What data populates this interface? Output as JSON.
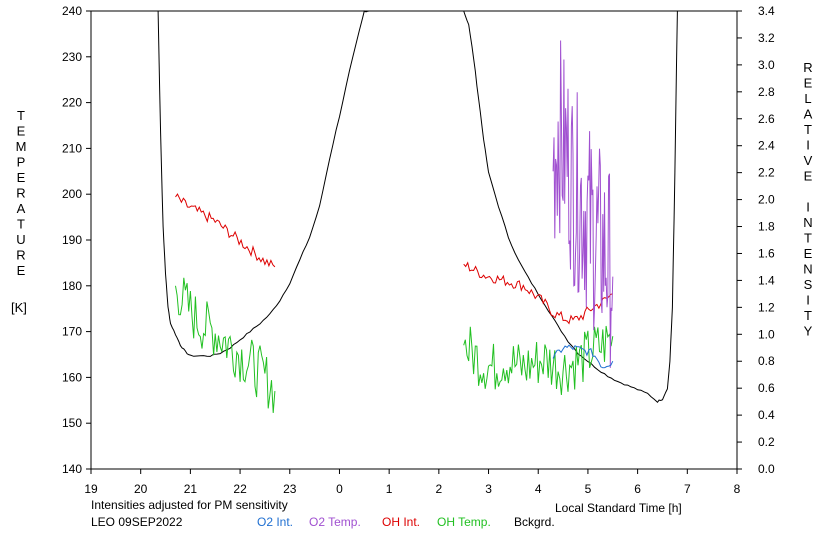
{
  "chart_data": {
    "type": "line",
    "title": "",
    "xlabel": "Local Standard Time [h]",
    "ylabel_left": "TEMPERATURE [K]",
    "ylabel_right": "RELATIVE INTENSITY",
    "ylabel_left_letters": [
      "T",
      "E",
      "M",
      "P",
      "E",
      "R",
      "A",
      "T",
      "U",
      "R",
      "E"
    ],
    "ylabel_left_unit": "[K]",
    "ylabel_right_letters": [
      "R",
      "E",
      "L",
      "A",
      "T",
      "I",
      "V",
      "E",
      "",
      "I",
      "N",
      "T",
      "E",
      "N",
      "S",
      "I",
      "T",
      "Y"
    ],
    "x_ticks": [
      "19",
      "20",
      "21",
      "22",
      "23",
      "0",
      "1",
      "2",
      "3",
      "4",
      "5",
      "6",
      "7",
      "8"
    ],
    "x_range": [
      19,
      32
    ],
    "y_left_range": [
      140,
      240
    ],
    "y_left_ticks": [
      "140",
      "150",
      "160",
      "170",
      "180",
      "190",
      "200",
      "210",
      "220",
      "230",
      "240"
    ],
    "y_right_range": [
      0,
      3.4
    ],
    "y_right_ticks": [
      "0.0",
      "0.2",
      "0.4",
      "0.6",
      "0.8",
      "1.0",
      "1.2",
      "1.4",
      "1.6",
      "1.8",
      "2.0",
      "2.2",
      "2.4",
      "2.6",
      "2.8",
      "3.0",
      "3.2",
      "3.4"
    ],
    "note": "Intensities adjusted for PM sensitivity",
    "station": "LEO 09SEP2022",
    "colors": {
      "o2_int": "#1f6fd1",
      "o2_temp": "#a050d0",
      "oh_int": "#dd0000",
      "oh_temp": "#22c022",
      "bckgrd": "#000000",
      "note": "#22c022"
    },
    "series": [
      {
        "name": "Bckgrd.",
        "key": "bckgrd",
        "axis": "right",
        "x": [
          20.35,
          20.4,
          20.45,
          20.5,
          20.55,
          20.6,
          20.7,
          20.8,
          20.9,
          21.0,
          21.2,
          21.4,
          21.6,
          21.8,
          22.0,
          22.2,
          22.4,
          22.6,
          22.8,
          23.0,
          23.2,
          23.4,
          23.6,
          23.8,
          24.0,
          24.2,
          24.4,
          24.5,
          24.6,
          26.5,
          26.6,
          26.7,
          26.8,
          26.9,
          27.0,
          27.2,
          27.4,
          27.6,
          27.8,
          28.0,
          28.2,
          28.4,
          28.6,
          28.8,
          29.0,
          29.2,
          29.4,
          29.6,
          29.8,
          30.0,
          30.2,
          30.4,
          30.5,
          30.6,
          30.65,
          30.7,
          30.75,
          30.8
        ],
        "values": [
          3.4,
          2.5,
          1.8,
          1.45,
          1.2,
          1.08,
          1.0,
          0.92,
          0.87,
          0.84,
          0.84,
          0.84,
          0.86,
          0.9,
          0.96,
          1.02,
          1.08,
          1.15,
          1.25,
          1.38,
          1.55,
          1.72,
          1.95,
          2.3,
          2.62,
          2.95,
          3.25,
          3.4,
          3.4,
          3.4,
          3.3,
          3.05,
          2.75,
          2.45,
          2.2,
          1.95,
          1.72,
          1.55,
          1.42,
          1.3,
          1.18,
          1.06,
          0.95,
          0.86,
          0.8,
          0.74,
          0.69,
          0.65,
          0.62,
          0.59,
          0.56,
          0.5,
          0.52,
          0.6,
          0.8,
          1.2,
          2.2,
          3.4
        ]
      },
      {
        "name": "OH Int.",
        "key": "oh_int",
        "axis": "right",
        "x": [
          20.7,
          20.9,
          21.1,
          21.3,
          21.5,
          21.7,
          21.9,
          22.1,
          22.3,
          22.5,
          22.7,
          26.5,
          26.7,
          26.9,
          27.1,
          27.3,
          27.5,
          27.7,
          27.9,
          28.1,
          28.3,
          28.5,
          28.7,
          28.9,
          29.1,
          29.3,
          29.5
        ],
        "values": [
          2.02,
          1.96,
          1.92,
          1.88,
          1.84,
          1.78,
          1.72,
          1.66,
          1.6,
          1.54,
          1.5,
          1.52,
          1.48,
          1.44,
          1.42,
          1.4,
          1.38,
          1.36,
          1.3,
          1.24,
          1.16,
          1.12,
          1.1,
          1.14,
          1.2,
          1.24,
          1.3
        ]
      },
      {
        "name": "OH Temp.",
        "key": "oh_temp",
        "axis": "left",
        "x": [
          20.7,
          20.9,
          21.1,
          21.3,
          21.5,
          21.7,
          21.9,
          22.1,
          22.3,
          22.5,
          22.7,
          26.5,
          26.7,
          26.9,
          27.1,
          27.3,
          27.5,
          27.7,
          27.9,
          28.1,
          28.3,
          28.5,
          28.7,
          28.9,
          29.1,
          29.3,
          29.5
        ],
        "values": [
          180,
          176,
          173,
          171,
          170,
          168,
          166,
          164,
          162,
          160,
          157,
          167,
          165,
          163,
          162,
          164,
          163,
          162,
          163,
          164,
          163,
          162,
          163,
          164,
          166,
          167,
          169
        ]
      },
      {
        "name": "O2 Temp.",
        "key": "o2_temp",
        "axis": "left",
        "x": [
          28.3,
          28.4,
          28.5,
          28.6,
          28.7,
          28.8,
          28.9,
          29.0,
          29.1,
          29.2,
          29.3,
          29.4,
          29.5
        ],
        "values": [
          205,
          215,
          210,
          208,
          202,
          200,
          198,
          195,
          192,
          190,
          188,
          186,
          182
        ]
      },
      {
        "name": "O2 Int.",
        "key": "o2_int",
        "axis": "right",
        "x": [
          28.3,
          28.5,
          28.7,
          28.9,
          29.1,
          29.3,
          29.5
        ],
        "values": [
          0.82,
          0.9,
          0.9,
          0.88,
          0.86,
          0.76,
          0.8
        ]
      }
    ],
    "legend": [
      {
        "label": "O2 Int.",
        "key": "o2_int"
      },
      {
        "label": "O2 Temp.",
        "key": "o2_temp"
      },
      {
        "label": "OH Int.",
        "key": "oh_int"
      },
      {
        "label": "OH Temp.",
        "key": "oh_temp"
      },
      {
        "label": "Bckgrd.",
        "key": "bckgrd"
      }
    ]
  }
}
